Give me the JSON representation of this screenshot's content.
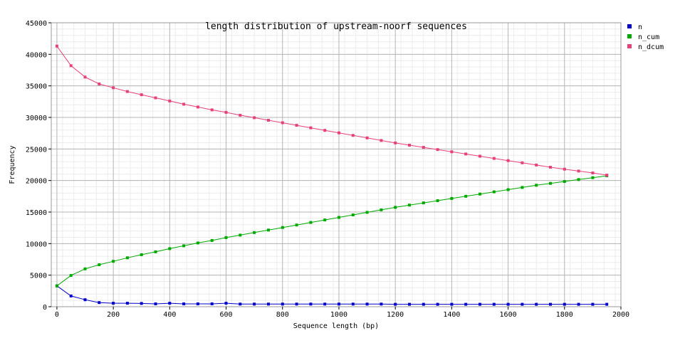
{
  "chart_data": {
    "type": "line",
    "title": "length distribution of upstream-noorf sequences",
    "xlabel": "Sequence length (bp)",
    "ylabel": "Frequency",
    "xlim": [
      -20,
      2000
    ],
    "ylim": [
      0,
      45000
    ],
    "x_ticks": [
      0,
      200,
      400,
      600,
      800,
      1000,
      1200,
      1400,
      1600,
      1800,
      2000
    ],
    "y_ticks": [
      0,
      5000,
      10000,
      15000,
      20000,
      25000,
      30000,
      35000,
      40000,
      45000
    ],
    "grid": true,
    "legend_position": "top-right",
    "x": [
      0,
      50,
      100,
      150,
      200,
      250,
      300,
      350,
      400,
      450,
      500,
      550,
      600,
      650,
      700,
      750,
      800,
      850,
      900,
      950,
      1000,
      1050,
      1100,
      1150,
      1200,
      1250,
      1300,
      1350,
      1400,
      1450,
      1500,
      1550,
      1600,
      1650,
      1700,
      1750,
      1800,
      1850,
      1900,
      1950
    ],
    "series": [
      {
        "name": "n",
        "color": "#0000cc",
        "values": [
          3300,
          1700,
          1100,
          650,
          550,
          550,
          520,
          450,
          550,
          450,
          450,
          450,
          550,
          420,
          420,
          420,
          420,
          420,
          420,
          420,
          420,
          420,
          420,
          420,
          380,
          380,
          380,
          380,
          380,
          380,
          380,
          380,
          380,
          380,
          380,
          380,
          380,
          380,
          380,
          380
        ]
      },
      {
        "name": "n_cum",
        "color": "#00aa00",
        "values": [
          3300,
          4950,
          6000,
          6650,
          7200,
          7750,
          8250,
          8700,
          9200,
          9650,
          10100,
          10500,
          10950,
          11350,
          11750,
          12150,
          12550,
          12950,
          13350,
          13750,
          14150,
          14550,
          14950,
          15350,
          15750,
          16100,
          16450,
          16800,
          17150,
          17500,
          17850,
          18200,
          18550,
          18900,
          19250,
          19550,
          19850,
          20150,
          20450,
          20750
        ]
      },
      {
        "name": "n_dcum",
        "color": "#e8407a",
        "values": [
          41300,
          38200,
          36400,
          35300,
          34700,
          34100,
          33600,
          33100,
          32600,
          32100,
          31650,
          31200,
          30800,
          30350,
          29950,
          29550,
          29150,
          28750,
          28350,
          27950,
          27550,
          27150,
          26750,
          26350,
          25950,
          25600,
          25250,
          24900,
          24550,
          24200,
          23850,
          23500,
          23150,
          22800,
          22450,
          22100,
          21800,
          21500,
          21200,
          20850
        ]
      }
    ]
  }
}
